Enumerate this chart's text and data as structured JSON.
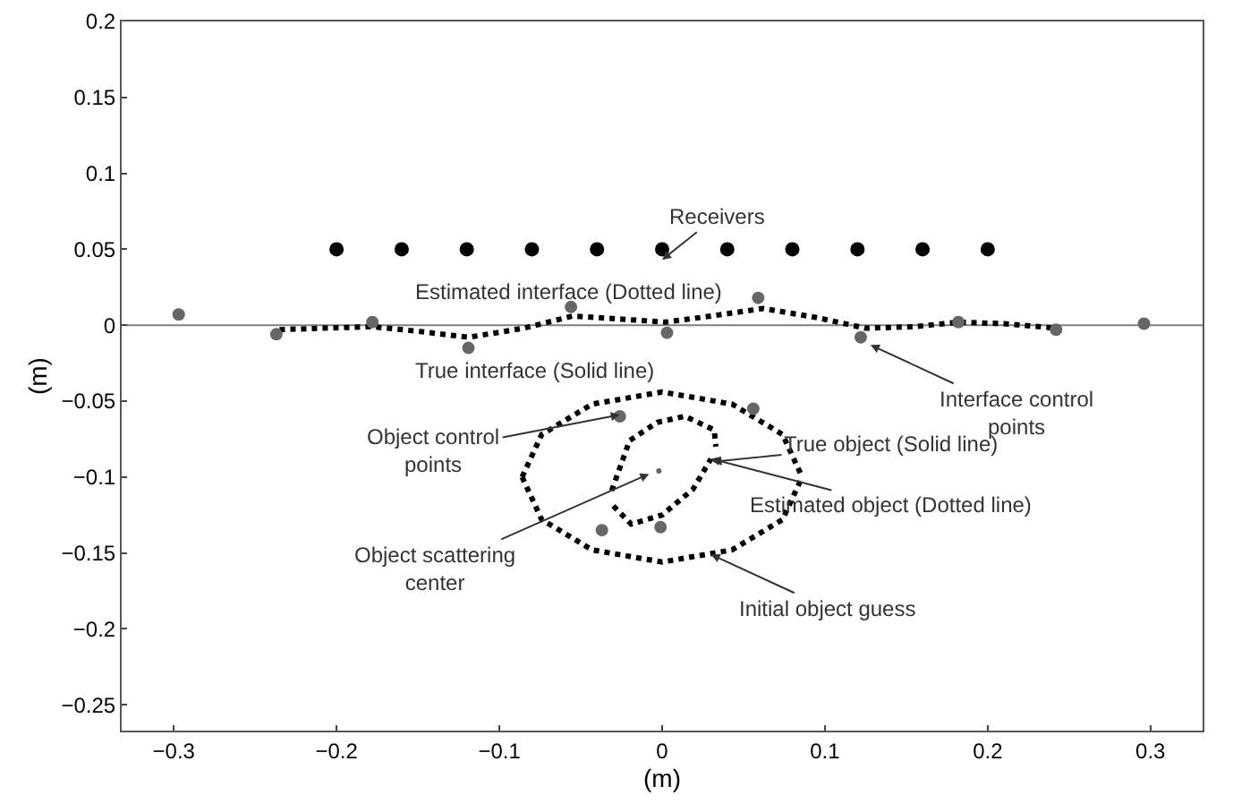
{
  "chart_data": {
    "type": "scatter",
    "xlabel": "(m)",
    "ylabel": "(m)",
    "xlim": [
      -0.332,
      0.332
    ],
    "ylim": [
      -0.267,
      0.2
    ],
    "xticks": [
      {
        "value": -0.3,
        "label": "−0.3"
      },
      {
        "value": -0.2,
        "label": "−0.2"
      },
      {
        "value": -0.1,
        "label": "−0.1"
      },
      0,
      0.1,
      0.2,
      0.3
    ],
    "yticks": [
      {
        "value": -0.25,
        "label": "−0.25"
      },
      {
        "value": -0.2,
        "label": "−0.2"
      },
      {
        "value": -0.15,
        "label": "−0.15"
      },
      {
        "value": -0.1,
        "label": "−0.1"
      },
      {
        "value": -0.05,
        "label": "−0.05"
      },
      0,
      0.05,
      0.1,
      0.15,
      0.2
    ],
    "ref_lines": [
      {
        "axis": "y",
        "value": 0,
        "color": "#808080"
      }
    ],
    "series": [
      {
        "type": "scatter",
        "marker": "circle",
        "color": "#000000",
        "x": [
          -0.2,
          -0.16,
          -0.12,
          -0.08,
          -0.04,
          0,
          0.04,
          0.08,
          0.12,
          0.16,
          0.2
        ],
        "values": [
          0.05,
          0.05,
          0.05,
          0.05,
          0.05,
          0.05,
          0.05,
          0.05,
          0.05,
          0.05,
          0.05
        ]
      },
      {
        "type": "line",
        "line_style": "dotted",
        "color": "#000000",
        "x": [
          -0.235,
          -0.21,
          -0.178,
          -0.15,
          -0.119,
          -0.085,
          -0.055,
          -0.025,
          0.002,
          0.03,
          0.062,
          0.095,
          0.125,
          0.155,
          0.182,
          0.21,
          0.242
        ],
        "values": [
          -0.003,
          -0.002,
          -0.001,
          -0.004,
          -0.008,
          -0.002,
          0.006,
          0.004,
          0.002,
          0.006,
          0.011,
          0.005,
          -0.002,
          -0.001,
          0.002,
          0.001,
          -0.002
        ]
      },
      {
        "type": "scatter",
        "marker": "circle",
        "color": "#666666",
        "x": [
          -0.297,
          -0.237,
          -0.178,
          -0.119,
          -0.056,
          0.003,
          0.059,
          0.122,
          0.182,
          0.242,
          0.296
        ],
        "values": [
          0.007,
          -0.006,
          0.002,
          -0.015,
          0.012,
          -0.005,
          0.018,
          -0.008,
          0.002,
          -0.003,
          0.001
        ]
      },
      {
        "type": "line",
        "line_style": "dotted",
        "color": "#000000",
        "x": [
          -0.086,
          -0.074,
          -0.043,
          0,
          0.043,
          0.074,
          0.086
        ],
        "values": [
          -0.1,
          -0.072,
          -0.052,
          -0.044,
          -0.052,
          -0.072,
          -0.1
        ]
      },
      {
        "type": "line",
        "line_style": "dotted",
        "color": "#000000",
        "x": [
          -0.031,
          -0.02,
          -0.003,
          0.014,
          0.032,
          0.033
        ],
        "values": [
          -0.109,
          -0.076,
          -0.064,
          -0.06,
          -0.069,
          -0.08
        ]
      },
      {
        "type": "scatter",
        "marker": "circle",
        "color": "#666666",
        "x": [
          -0.026,
          0.056,
          -0.037,
          -0.001
        ],
        "values": [
          -0.06,
          -0.055,
          -0.135,
          -0.133
        ]
      },
      {
        "type": "scatter",
        "marker": "circle",
        "color": "#666666",
        "x": [
          -0.002
        ],
        "values": [
          -0.096
        ]
      },
      {
        "type": "line",
        "line_style": "dotted",
        "color": "#000000",
        "x": [
          -0.086,
          -0.074,
          -0.043,
          0,
          0.043,
          0.074,
          0.086
        ],
        "values": [
          -0.1,
          -0.128,
          -0.148,
          -0.156,
          -0.148,
          -0.128,
          -0.1
        ]
      },
      {
        "type": "line",
        "line_style": "dotted",
        "color": "#000000",
        "x": [
          -0.03,
          -0.019,
          0,
          0.019,
          0.03
        ],
        "values": [
          -0.119,
          -0.131,
          -0.125,
          -0.108,
          -0.088
        ]
      }
    ],
    "annotations": [
      {
        "text": "Receivers",
        "x": 0,
        "y": 0.043
      },
      "Estimated interface (Dotted line)",
      "True interface (Solid line)",
      {
        "text": "Interface control\npoints",
        "x": 0.128,
        "y": -0.013
      },
      {
        "text": "Object control\npoints",
        "x": -0.026,
        "y": -0.059
      },
      {
        "text": "True object (Solid line)",
        "x": 0.031,
        "y": -0.09
      },
      {
        "text": "Estimated object (Dotted line)",
        "x": 0.03,
        "y": -0.088
      },
      {
        "text": "Object scattering\ncenter",
        "x": -0.008,
        "y": -0.098
      },
      {
        "text": "Initial object guess",
        "x": 0.03,
        "y": -0.151
      }
    ]
  }
}
